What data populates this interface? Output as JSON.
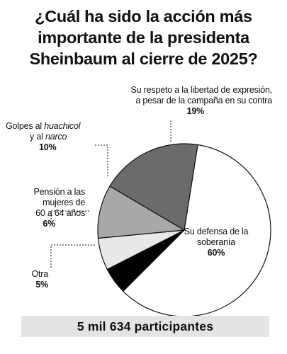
{
  "title_lines": [
    "¿Cuál ha sido la acción más",
    "importante de la presidenta",
    "Sheinbaum al cierre de 2025?"
  ],
  "footer": "5 mil 634 participantes",
  "chart_data": {
    "type": "pie",
    "title": "¿Cuál ha sido la acción más importante de la presidenta Sheinbaum al cierre de 2025?",
    "slices": [
      {
        "label": "Su defensa de la soberanía",
        "value": 60,
        "value_label": "60%",
        "color": "#ffffff"
      },
      {
        "label": "Otra",
        "value": 5,
        "value_label": "5%",
        "color": "#000000"
      },
      {
        "label": "Pensión a las mujeres de 60 a 64 años",
        "value": 6,
        "value_label": "6%",
        "color": "#e8e8e8"
      },
      {
        "label": "Golpes al huachicol y al narco",
        "value": 10,
        "value_label": "10%",
        "color": "#a8a8a8"
      },
      {
        "label": "Su respeto a la libertad de expresión, a pesar de la campaña en su contra",
        "value": 19,
        "value_label": "19%",
        "color": "#6b6b6b"
      }
    ],
    "labels": {
      "soberania": [
        "Su defensa de la",
        "soberanía"
      ],
      "otra": [
        "Otra"
      ],
      "pension": [
        "Pensión a las",
        "mujeres de",
        "60 a 64 años"
      ],
      "golpes_pre": "Golpes al ",
      "golpes_em1": "huachicol",
      "golpes_line2_pre": "y al ",
      "golpes_em2": "narco",
      "libertad": [
        "Su respeto a la libertad de expresión,",
        "a pesar de la campaña en su contra"
      ]
    }
  }
}
